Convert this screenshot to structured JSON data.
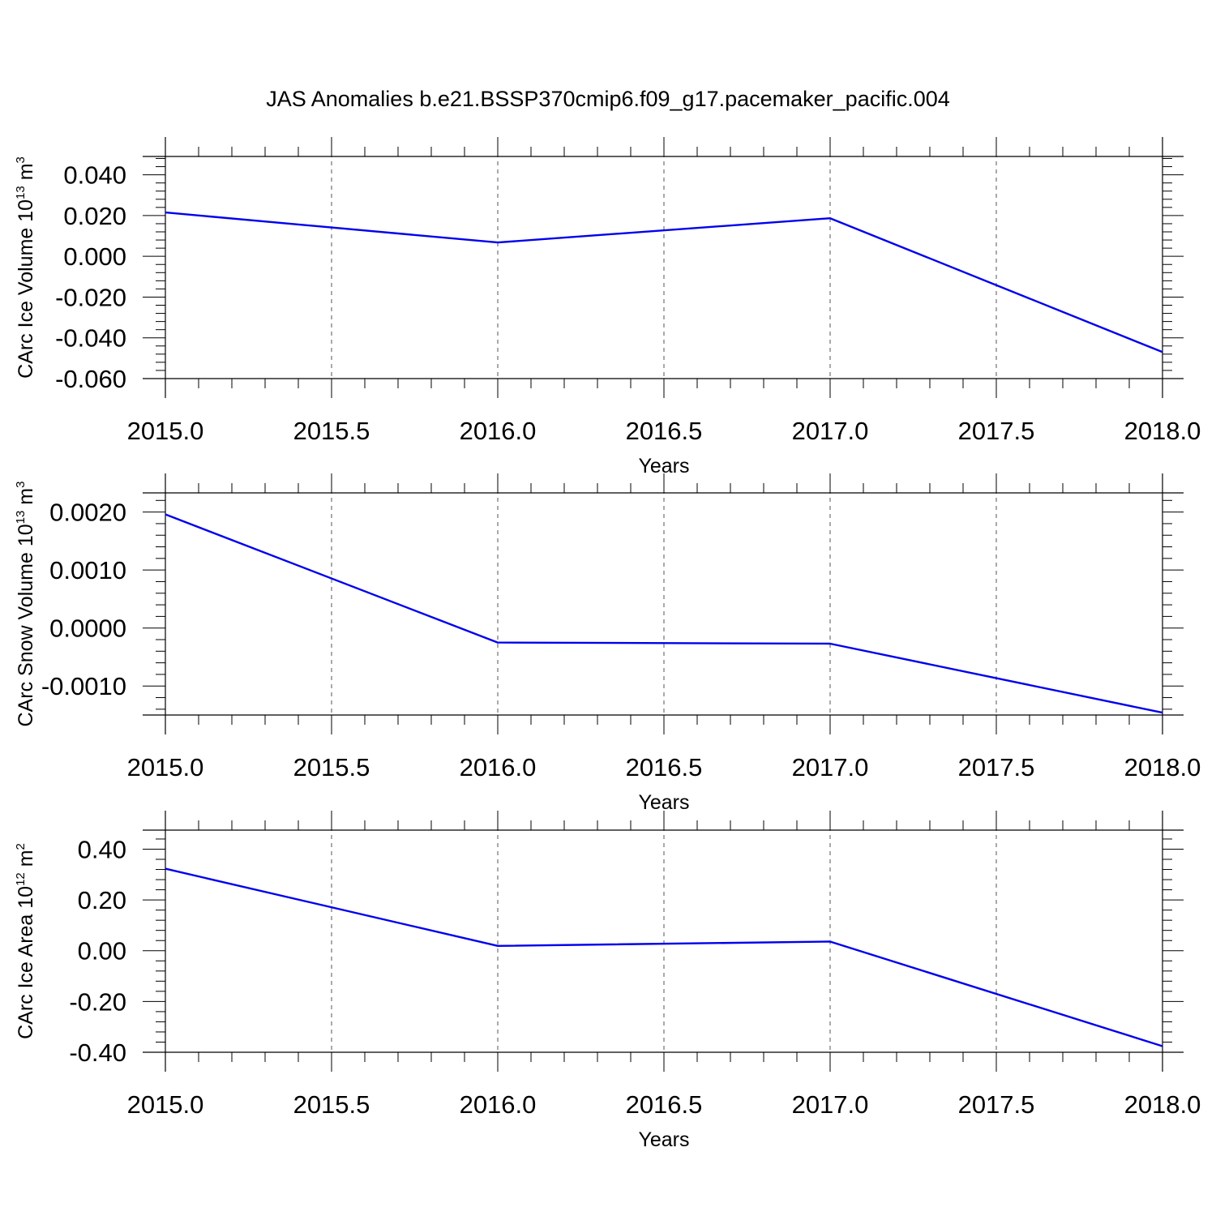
{
  "figure": {
    "title": "JAS Anomalies b.e21.BSSP370cmip6.f09_g17.pacemaker_pacific.004"
  },
  "chart_data": [
    {
      "type": "line",
      "xlabel": "Years",
      "ylabel": "CArc Ice Volume 10",
      "ylabel_exponent": "13",
      "ylabel_unit": "m",
      "ylabel_unit_exponent": "3",
      "xlim": [
        2015.0,
        2018.0
      ],
      "ylim": [
        -0.06,
        0.049
      ],
      "xticks": [
        2015.0,
        2015.5,
        2016.0,
        2016.5,
        2017.0,
        2017.5,
        2018.0
      ],
      "xtick_labels": [
        "2015.0",
        "2015.5",
        "2016.0",
        "2016.5",
        "2017.0",
        "2017.5",
        "2018.0"
      ],
      "yticks": [
        0.04,
        0.02,
        0.0,
        -0.02,
        -0.04,
        -0.06
      ],
      "ytick_labels": [
        "0.040",
        "0.020",
        "0.000",
        "-0.020",
        "-0.040",
        "-0.060"
      ],
      "grid": "vertical dashed at major x ticks",
      "series": [
        {
          "color": "#0000ee",
          "x": [
            2015,
            2016,
            2017,
            2018
          ],
          "y": [
            0.0215,
            0.0068,
            0.0187,
            -0.047
          ]
        }
      ]
    },
    {
      "type": "line",
      "xlabel": "Years",
      "ylabel": "CArc Snow Volume 10",
      "ylabel_exponent": "13",
      "ylabel_unit": "m",
      "ylabel_unit_exponent": "3",
      "xlim": [
        2015.0,
        2018.0
      ],
      "ylim": [
        -0.0015,
        0.00233
      ],
      "xticks": [
        2015.0,
        2015.5,
        2016.0,
        2016.5,
        2017.0,
        2017.5,
        2018.0
      ],
      "xtick_labels": [
        "2015.0",
        "2015.5",
        "2016.0",
        "2016.5",
        "2017.0",
        "2017.5",
        "2018.0"
      ],
      "yticks": [
        0.002,
        0.001,
        0.0,
        -0.001
      ],
      "ytick_labels": [
        "0.0020",
        "0.0010",
        "0.0000",
        "-0.0010"
      ],
      "grid": "vertical dashed at major x ticks",
      "series": [
        {
          "color": "#0000ee",
          "x": [
            2015,
            2016,
            2017,
            2018
          ],
          "y": [
            0.00196,
            -0.00025,
            -0.00027,
            -0.00146
          ]
        }
      ]
    },
    {
      "type": "line",
      "xlabel": "Years",
      "ylabel": "CArc Ice Area 10",
      "ylabel_exponent": "12",
      "ylabel_unit": "m",
      "ylabel_unit_exponent": "2",
      "xlim": [
        2015.0,
        2018.0
      ],
      "ylim": [
        -0.4,
        0.475
      ],
      "xticks": [
        2015.0,
        2015.5,
        2016.0,
        2016.5,
        2017.0,
        2017.5,
        2018.0
      ],
      "xtick_labels": [
        "2015.0",
        "2015.5",
        "2016.0",
        "2016.5",
        "2017.0",
        "2017.5",
        "2018.0"
      ],
      "yticks": [
        0.4,
        0.2,
        0.0,
        -0.2,
        -0.4
      ],
      "ytick_labels": [
        "0.40",
        "0.20",
        "0.00",
        "-0.20",
        "-0.40"
      ],
      "grid": "vertical dashed at major x ticks",
      "series": [
        {
          "color": "#0000ee",
          "x": [
            2015,
            2016,
            2017,
            2018
          ],
          "y": [
            0.323,
            0.019,
            0.036,
            -0.376
          ]
        }
      ]
    }
  ]
}
